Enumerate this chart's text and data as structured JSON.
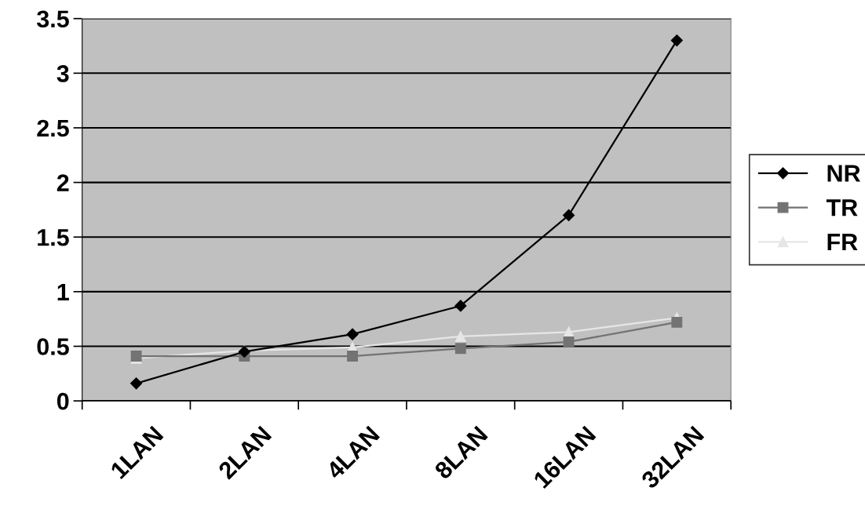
{
  "chart_data": {
    "type": "line",
    "categories": [
      "1LAN",
      "2LAN",
      "4LAN",
      "8LAN",
      "16LAN",
      "32LAN"
    ],
    "series": [
      {
        "name": "NR",
        "color": "#000000",
        "marker": "diamond",
        "values": [
          0.16,
          0.45,
          0.61,
          0.87,
          1.7,
          3.3
        ]
      },
      {
        "name": "TR",
        "color": "#737373",
        "marker": "square",
        "values": [
          0.41,
          0.41,
          0.41,
          0.48,
          0.54,
          0.72
        ]
      },
      {
        "name": "FR",
        "color": "#e6e6e6",
        "marker": "triangle",
        "values": [
          0.39,
          0.46,
          0.49,
          0.59,
          0.63,
          0.76
        ]
      }
    ],
    "ylim": [
      0,
      3.5
    ],
    "yticks": [
      0,
      0.5,
      1,
      1.5,
      2,
      2.5,
      3,
      3.5
    ],
    "grid": "y",
    "legend": "right",
    "line_style": "solid"
  }
}
